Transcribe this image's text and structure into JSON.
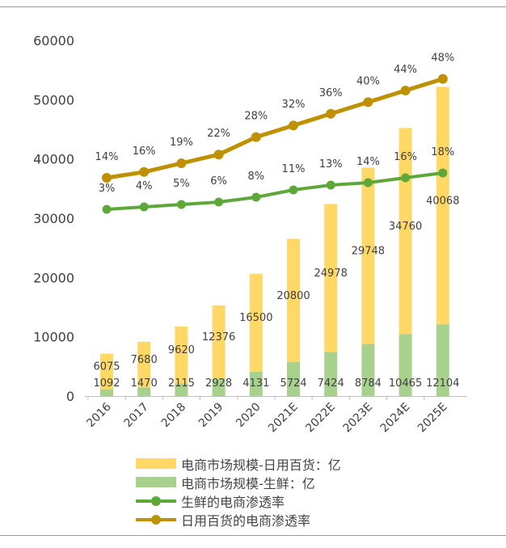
{
  "chart_data": {
    "type": "bar+line",
    "categories": [
      "2016",
      "2017",
      "2018",
      "2019",
      "2020",
      "2021E",
      "2022E",
      "2023E",
      "2024E",
      "2025E"
    ],
    "y_ticks": [
      "0",
      "10000",
      "20000",
      "30000",
      "40000",
      "50000",
      "60000"
    ],
    "ylim": [
      0,
      60000
    ],
    "bar_series": [
      {
        "name": "电商市场规模-日用百货：亿",
        "color": "#ffd866",
        "values": [
          6075,
          7680,
          9620,
          12376,
          16500,
          20800,
          24978,
          29748,
          34760,
          40068
        ],
        "labels": [
          "6075",
          "7680",
          "9620",
          "12376",
          "16500",
          "20800",
          "24978",
          "29748",
          "34760",
          "40068"
        ]
      },
      {
        "name": "电商市场规模-生鲜：亿",
        "color": "#a9d18e",
        "values": [
          1092,
          1470,
          2115,
          2928,
          4131,
          5724,
          7424,
          8784,
          10465,
          12104
        ],
        "labels": [
          "1092",
          "1470",
          "2115",
          "2928",
          "4131",
          "5724",
          "7424",
          "8784",
          "10465",
          "12104"
        ]
      }
    ],
    "line_series": [
      {
        "name": "生鲜的电商渗透率",
        "color": "#5ea83a",
        "values": [
          3,
          4,
          5,
          6,
          8,
          11,
          13,
          14,
          16,
          18
        ],
        "labels": [
          "3%",
          "4%",
          "5%",
          "6%",
          "8%",
          "11%",
          "13%",
          "14%",
          "16%",
          "18%"
        ]
      },
      {
        "name": "日用百货的电商渗透率",
        "color": "#bf9000",
        "values": [
          14,
          16,
          19,
          22,
          28,
          32,
          36,
          40,
          44,
          48
        ],
        "labels": [
          "14%",
          "16%",
          "19%",
          "22%",
          "28%",
          "32%",
          "36%",
          "40%",
          "44%",
          "48%"
        ]
      }
    ]
  }
}
